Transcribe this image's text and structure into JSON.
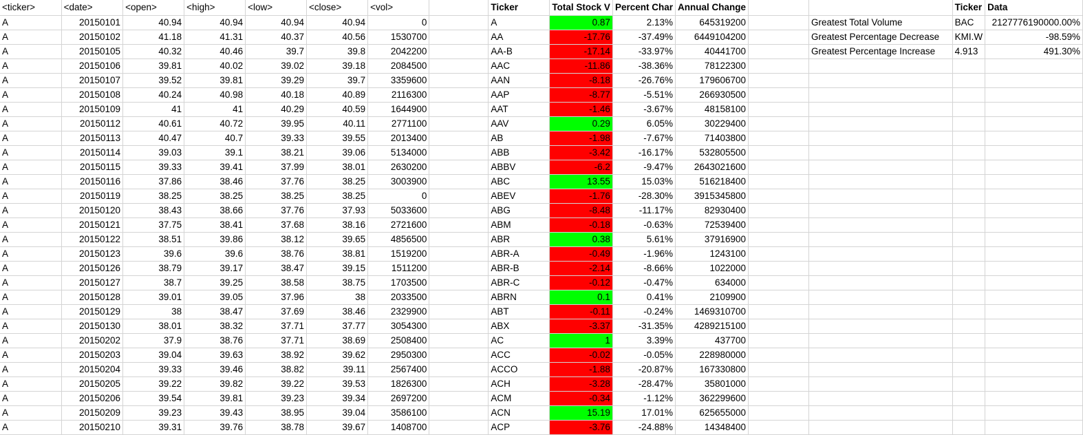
{
  "raw": {
    "headers": [
      "<ticker>",
      "<date>",
      "<open>",
      "<high>",
      "<low>",
      "<close>",
      "<vol>"
    ],
    "rows": [
      [
        "A",
        "20150101",
        "40.94",
        "40.94",
        "40.94",
        "40.94",
        "0"
      ],
      [
        "A",
        "20150102",
        "41.18",
        "41.31",
        "40.37",
        "40.56",
        "1530700"
      ],
      [
        "A",
        "20150105",
        "40.32",
        "40.46",
        "39.7",
        "39.8",
        "2042200"
      ],
      [
        "A",
        "20150106",
        "39.81",
        "40.02",
        "39.02",
        "39.18",
        "2084500"
      ],
      [
        "A",
        "20150107",
        "39.52",
        "39.81",
        "39.29",
        "39.7",
        "3359600"
      ],
      [
        "A",
        "20150108",
        "40.24",
        "40.98",
        "40.18",
        "40.89",
        "2116300"
      ],
      [
        "A",
        "20150109",
        "41",
        "41",
        "40.29",
        "40.59",
        "1644900"
      ],
      [
        "A",
        "20150112",
        "40.61",
        "40.72",
        "39.95",
        "40.11",
        "2771100"
      ],
      [
        "A",
        "20150113",
        "40.47",
        "40.7",
        "39.33",
        "39.55",
        "2013400"
      ],
      [
        "A",
        "20150114",
        "39.03",
        "39.1",
        "38.21",
        "39.06",
        "5134000"
      ],
      [
        "A",
        "20150115",
        "39.33",
        "39.41",
        "37.99",
        "38.01",
        "2630200"
      ],
      [
        "A",
        "20150116",
        "37.86",
        "38.46",
        "37.76",
        "38.25",
        "3003900"
      ],
      [
        "A",
        "20150119",
        "38.25",
        "38.25",
        "38.25",
        "38.25",
        "0"
      ],
      [
        "A",
        "20150120",
        "38.43",
        "38.66",
        "37.76",
        "37.93",
        "5033600"
      ],
      [
        "A",
        "20150121",
        "37.75",
        "38.41",
        "37.68",
        "38.16",
        "2721600"
      ],
      [
        "A",
        "20150122",
        "38.51",
        "39.86",
        "38.12",
        "39.65",
        "4856500"
      ],
      [
        "A",
        "20150123",
        "39.6",
        "39.6",
        "38.76",
        "38.81",
        "1519200"
      ],
      [
        "A",
        "20150126",
        "38.79",
        "39.17",
        "38.47",
        "39.15",
        "1511200"
      ],
      [
        "A",
        "20150127",
        "38.7",
        "39.25",
        "38.58",
        "38.75",
        "1703500"
      ],
      [
        "A",
        "20150128",
        "39.01",
        "39.05",
        "37.96",
        "38",
        "2033500"
      ],
      [
        "A",
        "20150129",
        "38",
        "38.47",
        "37.69",
        "38.46",
        "2329900"
      ],
      [
        "A",
        "20150130",
        "38.01",
        "38.32",
        "37.71",
        "37.77",
        "3054300"
      ],
      [
        "A",
        "20150202",
        "37.9",
        "38.76",
        "37.71",
        "38.69",
        "2508400"
      ],
      [
        "A",
        "20150203",
        "39.04",
        "39.63",
        "38.92",
        "39.62",
        "2950300"
      ],
      [
        "A",
        "20150204",
        "39.33",
        "39.46",
        "38.82",
        "39.11",
        "2567400"
      ],
      [
        "A",
        "20150205",
        "39.22",
        "39.82",
        "39.22",
        "39.53",
        "1826300"
      ],
      [
        "A",
        "20150206",
        "39.54",
        "39.81",
        "39.23",
        "39.34",
        "2697200"
      ],
      [
        "A",
        "20150209",
        "39.23",
        "39.43",
        "38.95",
        "39.04",
        "3586100"
      ],
      [
        "A",
        "20150210",
        "39.31",
        "39.76",
        "38.78",
        "39.67",
        "1408700"
      ]
    ]
  },
  "summary": {
    "headers": [
      "Ticker",
      "Total Stock V",
      "Percent Char",
      "Annual Change"
    ],
    "rows": [
      [
        "A",
        "0.87",
        "2.13%",
        "645319200"
      ],
      [
        "AA",
        "-17.76",
        "-37.49%",
        "6449104200"
      ],
      [
        "AA-B",
        "-17.14",
        "-33.97%",
        "40441700"
      ],
      [
        "AAC",
        "-11.86",
        "-38.36%",
        "78122300"
      ],
      [
        "AAN",
        "-8.18",
        "-26.76%",
        "179606700"
      ],
      [
        "AAP",
        "-8.77",
        "-5.51%",
        "266930500"
      ],
      [
        "AAT",
        "-1.46",
        "-3.67%",
        "48158100"
      ],
      [
        "AAV",
        "0.29",
        "6.05%",
        "30229400"
      ],
      [
        "AB",
        "-1.98",
        "-7.67%",
        "71403800"
      ],
      [
        "ABB",
        "-3.42",
        "-16.17%",
        "532805500"
      ],
      [
        "ABBV",
        "-6.2",
        "-9.47%",
        "2643021600"
      ],
      [
        "ABC",
        "13.55",
        "15.03%",
        "516218400"
      ],
      [
        "ABEV",
        "-1.76",
        "-28.30%",
        "3915345800"
      ],
      [
        "ABG",
        "-8.48",
        "-11.17%",
        "82930400"
      ],
      [
        "ABM",
        "-0.18",
        "-0.63%",
        "72539400"
      ],
      [
        "ABR",
        "0.38",
        "5.61%",
        "37916900"
      ],
      [
        "ABR-A",
        "-0.49",
        "-1.96%",
        "1243100"
      ],
      [
        "ABR-B",
        "-2.14",
        "-8.66%",
        "1022000"
      ],
      [
        "ABR-C",
        "-0.12",
        "-0.47%",
        "634000"
      ],
      [
        "ABRN",
        "0.1",
        "0.41%",
        "2109900"
      ],
      [
        "ABT",
        "-0.11",
        "-0.24%",
        "1469310700"
      ],
      [
        "ABX",
        "-3.37",
        "-31.35%",
        "4289215100"
      ],
      [
        "AC",
        "1",
        "3.39%",
        "437700"
      ],
      [
        "ACC",
        "-0.02",
        "-0.05%",
        "228980000"
      ],
      [
        "ACCO",
        "-1.88",
        "-20.87%",
        "167330800"
      ],
      [
        "ACH",
        "-3.28",
        "-28.47%",
        "35801000"
      ],
      [
        "ACM",
        "-0.34",
        "-1.12%",
        "362299600"
      ],
      [
        "ACN",
        "15.19",
        "17.01%",
        "625655000"
      ],
      [
        "ACP",
        "-3.76",
        "-24.88%",
        "14348400"
      ]
    ]
  },
  "greatest": {
    "headers": [
      "Ticker",
      "Data"
    ],
    "rows": [
      [
        "Greatest Total Volume",
        "BAC",
        "2127776190000.00%"
      ],
      [
        "Greatest Percentage Decrease",
        "KMI.W",
        "-98.59%"
      ],
      [
        "Greatest Percentage Increase",
        "4.913",
        "491.30%"
      ]
    ]
  },
  "colors": {
    "positive_fill": "#00ff00",
    "negative_fill": "#ff0000",
    "gridline": "#d4d4d4"
  }
}
